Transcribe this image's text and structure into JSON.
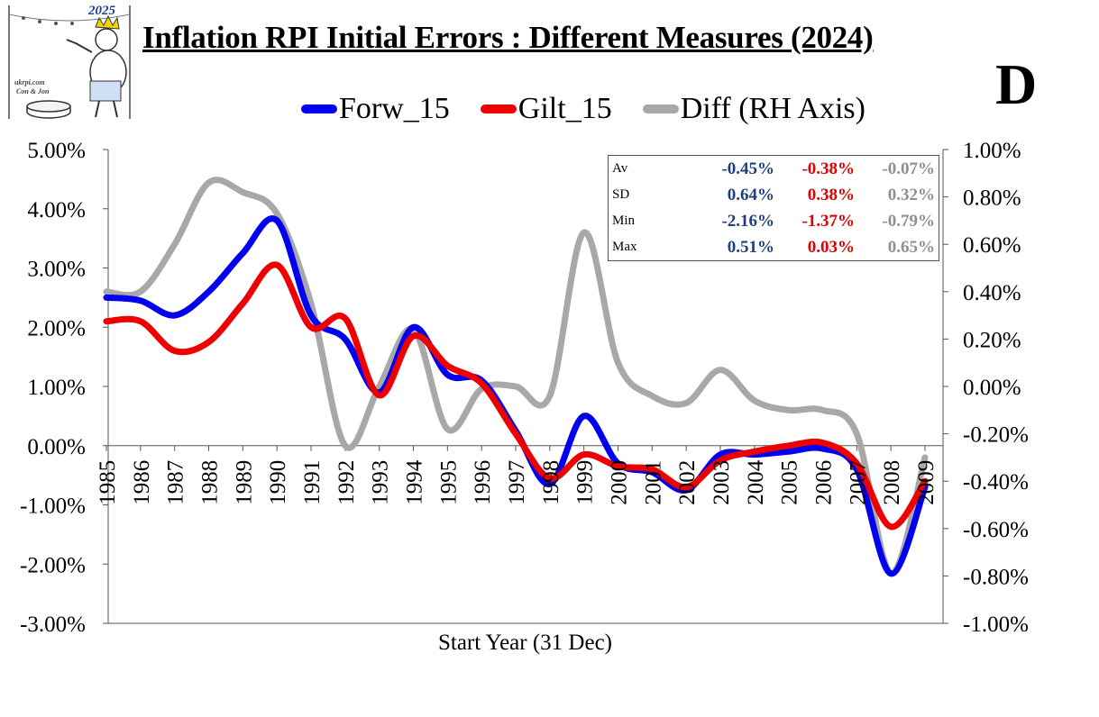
{
  "title": "Inflation RPI Initial Errors : Different Measures (2024)",
  "badge": "D",
  "logo": {
    "year": "2025",
    "site": "ukrpi.com",
    "credit": "Con & Jon"
  },
  "chart_data": {
    "type": "line",
    "title": "Inflation RPI Initial Errors : Different Measures (2024)",
    "xlabel": "Start Year (31 Dec)",
    "x": [
      "1985",
      "1986",
      "1987",
      "1988",
      "1989",
      "1990",
      "1991",
      "1992",
      "1993",
      "1994",
      "1995",
      "1996",
      "1997",
      "1998",
      "1999",
      "2000",
      "2001",
      "2002",
      "2003",
      "2004",
      "2005",
      "2006",
      "2007",
      "2008",
      "2009"
    ],
    "ylim": [
      -3,
      5
    ],
    "y2lim": [
      -1,
      1
    ],
    "yticks": [
      "5.00%",
      "4.00%",
      "3.00%",
      "2.00%",
      "1.00%",
      "0.00%",
      "-1.00%",
      "-2.00%",
      "-3.00%"
    ],
    "y2ticks": [
      "1.00%",
      "0.80%",
      "0.60%",
      "0.40%",
      "0.20%",
      "0.00%",
      "-0.20%",
      "-0.40%",
      "-0.60%",
      "-0.80%",
      "-1.00%"
    ],
    "legend_position": "top",
    "series": [
      {
        "name": "Forw_15",
        "axis": "left",
        "color": "#0000ee",
        "values": [
          2.5,
          2.45,
          2.2,
          2.6,
          3.25,
          3.8,
          2.2,
          1.8,
          0.9,
          2.0,
          1.2,
          1.1,
          0.25,
          -0.65,
          0.5,
          -0.3,
          -0.45,
          -0.75,
          -0.15,
          -0.15,
          -0.1,
          -0.05,
          -0.4,
          -2.16,
          -0.7
        ]
      },
      {
        "name": "Gilt_15",
        "axis": "left",
        "color": "#ee0000",
        "values": [
          2.1,
          2.1,
          1.6,
          1.75,
          2.4,
          3.05,
          2.0,
          2.15,
          0.85,
          1.85,
          1.35,
          1.05,
          0.2,
          -0.55,
          -0.15,
          -0.35,
          -0.4,
          -0.7,
          -0.25,
          -0.1,
          0.0,
          0.05,
          -0.3,
          -1.37,
          -0.6
        ]
      },
      {
        "name": "Diff (RH Axis)",
        "axis": "right",
        "color": "#a8a8a8",
        "values": [
          0.4,
          0.4,
          0.6,
          0.86,
          0.82,
          0.73,
          0.35,
          -0.25,
          0.0,
          0.24,
          -0.18,
          -0.01,
          0.0,
          -0.04,
          0.65,
          0.1,
          -0.04,
          -0.07,
          0.07,
          -0.06,
          -0.1,
          -0.1,
          -0.2,
          -0.79,
          -0.3
        ]
      }
    ],
    "stats": {
      "rows": [
        {
          "label": "Av",
          "values": [
            "-0.45%",
            "-0.38%",
            "-0.07%"
          ]
        },
        {
          "label": "SD",
          "values": [
            "0.64%",
            "0.38%",
            "0.32%"
          ]
        },
        {
          "label": "Min",
          "values": [
            "-2.16%",
            "-1.37%",
            "-0.79%"
          ]
        },
        {
          "label": "Max",
          "values": [
            "0.51%",
            "0.03%",
            "0.65%"
          ]
        }
      ]
    }
  }
}
